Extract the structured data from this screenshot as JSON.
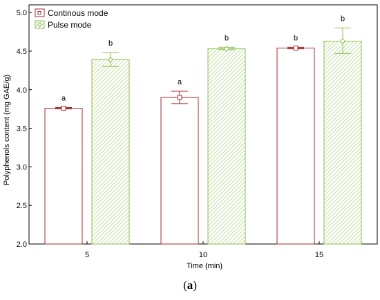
{
  "chart_data": {
    "type": "bar",
    "categories": [
      "5",
      "10",
      "15"
    ],
    "xlabel": "Time (min)",
    "ylabel": "Polyphenols content (mg GAE/g)",
    "ylim": [
      2.0,
      5.1
    ],
    "yticks": [
      "2.0",
      "2.5",
      "3.0",
      "3.5",
      "4.0",
      "4.5",
      "5.0"
    ],
    "grid": false,
    "legend_position": "top-left",
    "series": [
      {
        "name": "Continous mode",
        "values": [
          3.76,
          3.9,
          4.54
        ],
        "error_low": [
          3.75,
          3.82,
          4.53
        ],
        "error_high": [
          3.77,
          3.98,
          4.55
        ],
        "labels": [
          "a",
          "a",
          "b"
        ],
        "color": "#a52a2a",
        "fill": "none",
        "marker": "square"
      },
      {
        "name": "Pulse mode",
        "values": [
          4.39,
          4.53,
          4.63
        ],
        "error_low": [
          4.3,
          4.52,
          4.47
        ],
        "error_high": [
          4.48,
          4.55,
          4.8
        ],
        "labels": [
          "b",
          "b",
          "b"
        ],
        "color": "#8fbf4f",
        "fill": "hatched",
        "marker": "diamond"
      }
    ]
  },
  "caption": {
    "open": "(",
    "letter": "a",
    "close": ")"
  }
}
